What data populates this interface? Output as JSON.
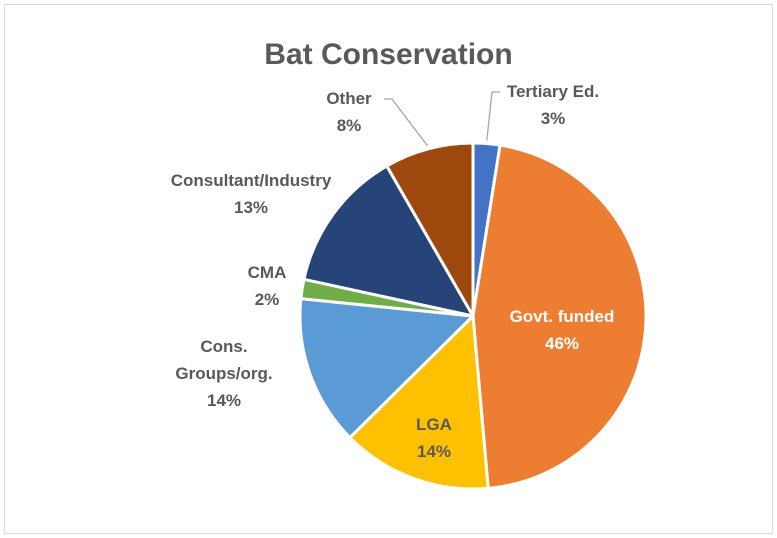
{
  "chart_data": {
    "type": "pie",
    "title": "Bat Conservation",
    "categories": [
      "Tertiary Ed.",
      "Govt. funded",
      "LGA",
      "Cons. Groups/org.",
      "CMA",
      "Consultant/Industry",
      "Other"
    ],
    "values": [
      2.5,
      46.1,
      14.0,
      14.0,
      1.8,
      13.3,
      8.3
    ],
    "display_labels": [
      {
        "name": "Tertiary Ed.",
        "lines": [
          "Tertiary Ed.",
          "3%"
        ]
      },
      {
        "name": "Govt. funded",
        "lines": [
          "Govt. funded",
          "46%"
        ]
      },
      {
        "name": "LGA",
        "lines": [
          "LGA",
          "14%"
        ]
      },
      {
        "name": "Cons. Groups/org.",
        "lines": [
          "Cons.",
          "Groups/org.",
          "14%"
        ]
      },
      {
        "name": "CMA",
        "lines": [
          "CMA",
          "2%"
        ]
      },
      {
        "name": "Consultant/Industry",
        "lines": [
          "Consultant/Industry",
          "13%"
        ]
      },
      {
        "name": "Other",
        "lines": [
          "Other",
          "8%"
        ]
      }
    ],
    "colors": [
      "#4472c4",
      "#ed7d31",
      "#ffc000",
      "#5b9bd5",
      "#70ad47",
      "#264478",
      "#9e480e"
    ],
    "label_colors": [
      "#595959",
      "#ffffff",
      "#595959",
      "#595959",
      "#595959",
      "#595959",
      "#595959"
    ],
    "start_angle_deg": 0,
    "direction": "clockwise",
    "legend": "none"
  }
}
